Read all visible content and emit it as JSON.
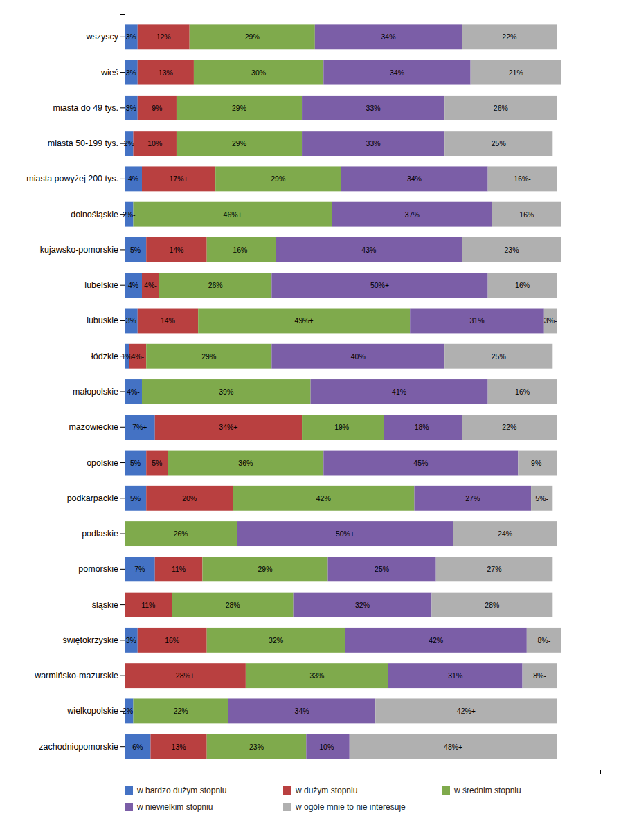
{
  "chart_data": {
    "type": "bar",
    "orientation": "horizontal",
    "stacked": true,
    "data_labels": true,
    "grid": false,
    "legend": "bottom",
    "tick_labels": "y",
    "xlim": [
      0,
      110
    ],
    "categories": [
      "wszyscy",
      "wieś",
      "miasta do 49 tys.",
      "miasta 50-199 tys.",
      "miasta powyżej 200 tys.",
      "dolnośląskie",
      "kujawsko-pomorskie",
      "lubelskie",
      "lubuskie",
      "łódzkie",
      "małopolskie",
      "mazowieckie",
      "opolskie",
      "podkarpackie",
      "podlaskie",
      "pomorskie",
      "śląskie",
      "świętokrzyskie",
      "warmińsko-mazurskie",
      "wielkopolskie",
      "zachodniopomorskie"
    ],
    "series": [
      {
        "name": "w bardzo dużym stopniu",
        "color": "#4472c4",
        "values": [
          3,
          3,
          3,
          2,
          4,
          2,
          5,
          4,
          3,
          1,
          4,
          7,
          5,
          5,
          0,
          7,
          0,
          3,
          0,
          2,
          6
        ],
        "value_labels": [
          "3%",
          "3%",
          "3%",
          "2%",
          "4%",
          "2%-",
          "5%",
          "4%",
          "3%",
          "1%",
          "4%-",
          "7%+",
          "5%",
          "5%",
          null,
          "7%",
          null,
          "3%",
          null,
          "2%-",
          "6%"
        ]
      },
      {
        "name": "w dużym stopniu",
        "color": "#b94040",
        "values": [
          12,
          13,
          9,
          10,
          17,
          0,
          14,
          4,
          14,
          4,
          0,
          34,
          5,
          20,
          0,
          11,
          11,
          16,
          28,
          0,
          13
        ],
        "value_labels": [
          "12%",
          "13%",
          "9%",
          "10%",
          "17%+",
          null,
          "14%",
          "4%-",
          "14%",
          "4%-",
          null,
          "34%+",
          "5%",
          "20%",
          null,
          "11%",
          "11%",
          "16%",
          "28%+",
          null,
          "13%"
        ]
      },
      {
        "name": "w średnim stopniu",
        "color": "#7faa4c",
        "values": [
          29,
          30,
          29,
          29,
          29,
          46,
          16,
          26,
          49,
          29,
          39,
          19,
          36,
          42,
          26,
          29,
          28,
          32,
          33,
          22,
          23
        ],
        "value_labels": [
          "29%",
          "30%",
          "29%",
          "29%",
          "29%",
          "46%+",
          "16%-",
          "26%",
          "49%+",
          "29%",
          "39%",
          "19%-",
          "36%",
          "42%",
          "26%",
          "29%",
          "28%",
          "32%",
          "33%",
          "22%",
          "23%"
        ]
      },
      {
        "name": "w niewielkim stopniu",
        "color": "#7b5ea7",
        "values": [
          34,
          34,
          33,
          33,
          34,
          37,
          43,
          50,
          31,
          40,
          41,
          18,
          45,
          27,
          50,
          25,
          32,
          42,
          31,
          34,
          10
        ],
        "value_labels": [
          "34%",
          "34%",
          "33%",
          "33%",
          "34%",
          "37%",
          "43%",
          "50%+",
          "31%",
          "40%",
          "41%",
          "18%-",
          "45%",
          "27%",
          "50%+",
          "25%",
          "32%",
          "42%",
          "31%",
          "34%",
          "10%-"
        ]
      },
      {
        "name": "w ogóle mnie to nie interesuje",
        "color": "#b0b0b0",
        "values": [
          22,
          21,
          26,
          25,
          16,
          16,
          23,
          16,
          3,
          25,
          16,
          22,
          9,
          5,
          24,
          27,
          28,
          8,
          8,
          42,
          48
        ],
        "value_labels": [
          "22%",
          "21%",
          "26%",
          "25%",
          "16%-",
          "16%",
          "23%",
          "16%",
          "3%-",
          "25%",
          "16%",
          "22%",
          "9%-",
          "5%-",
          "24%",
          "27%",
          "28%",
          "8%-",
          "8%-",
          "42%+",
          "48%+"
        ]
      }
    ]
  }
}
